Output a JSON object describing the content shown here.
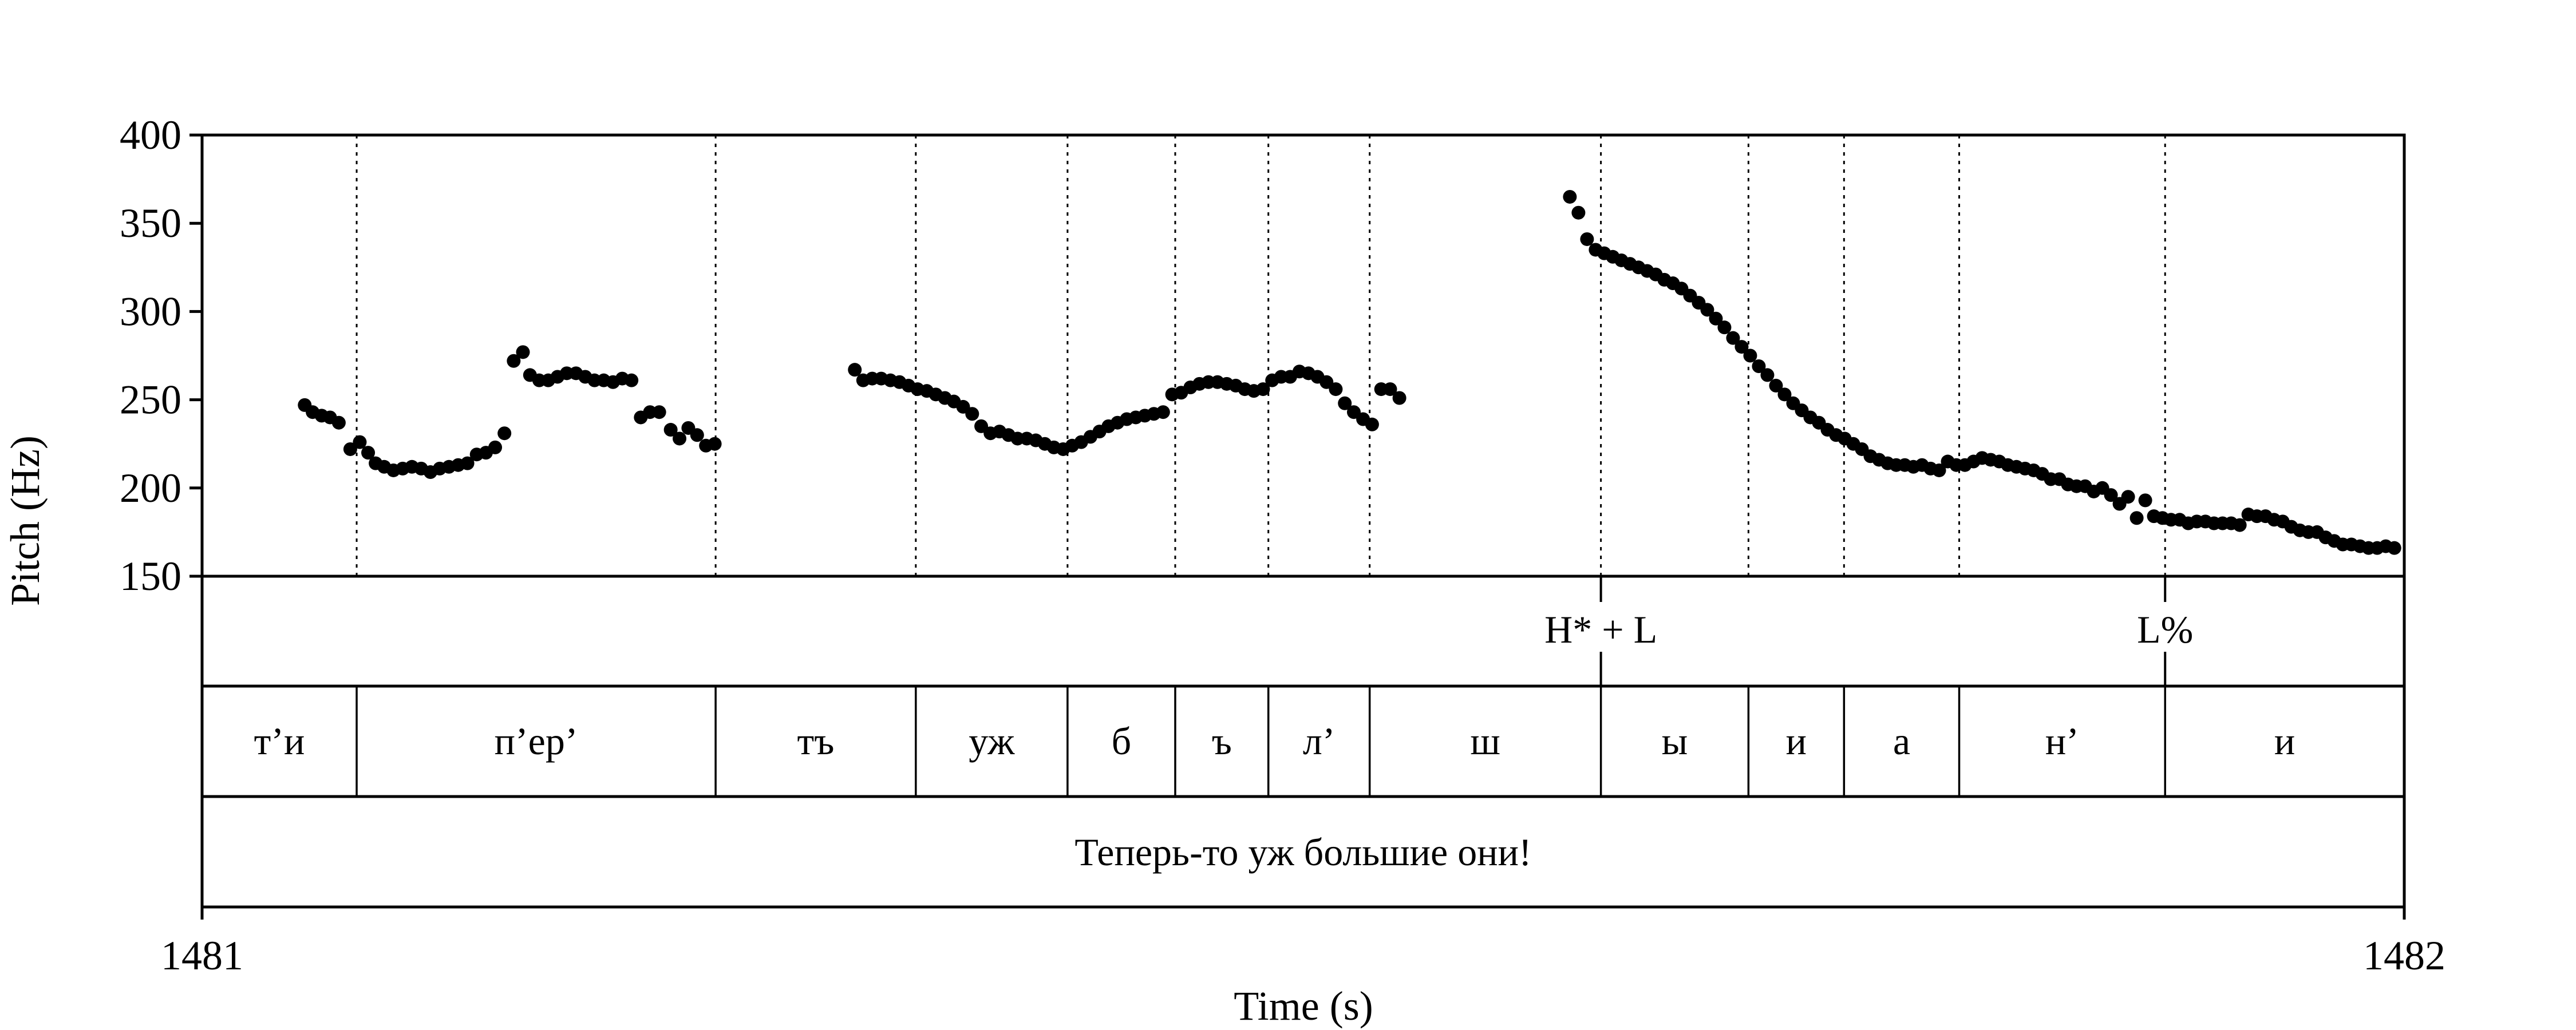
{
  "chart_data": {
    "type": "scatter",
    "xlabel": "Time (s)",
    "ylabel": "Pitch (Hz)",
    "xlim": [
      1481,
      1482
    ],
    "ylim": [
      150,
      400
    ],
    "x_tick_labels": [
      "1481",
      "1482"
    ],
    "y_ticks": [
      150,
      200,
      250,
      300,
      350,
      400
    ],
    "y_tick_labels": [
      "150",
      "200",
      "250",
      "300",
      "350",
      "400"
    ],
    "grid": false,
    "boundaries": [
      1481.0702,
      1481.2332,
      1481.3241,
      1481.393,
      1481.4419,
      1481.4842,
      1481.5302,
      1481.6352,
      1481.7022,
      1481.7456,
      1481.7979,
      1481.8914
    ],
    "tones": [
      {
        "time": 1481.6352,
        "label": "H* + L"
      },
      {
        "time": 1481.8914,
        "label": "L%"
      }
    ],
    "segments": [
      {
        "start": 1481.0,
        "end": 1481.0702,
        "label": "т’и"
      },
      {
        "start": 1481.0702,
        "end": 1481.2332,
        "label": "п’ер’"
      },
      {
        "start": 1481.2332,
        "end": 1481.3241,
        "label": "тъ"
      },
      {
        "start": 1481.3241,
        "end": 1481.393,
        "label": "уж"
      },
      {
        "start": 1481.393,
        "end": 1481.4419,
        "label": "б"
      },
      {
        "start": 1481.4419,
        "end": 1481.4842,
        "label": "ъ"
      },
      {
        "start": 1481.4842,
        "end": 1481.5302,
        "label": "л’"
      },
      {
        "start": 1481.5302,
        "end": 1481.6352,
        "label": "ш"
      },
      {
        "start": 1481.6352,
        "end": 1481.7022,
        "label": "ы"
      },
      {
        "start": 1481.7022,
        "end": 1481.7456,
        "label": "и"
      },
      {
        "start": 1481.7456,
        "end": 1481.7979,
        "label": "а"
      },
      {
        "start": 1481.7979,
        "end": 1481.8914,
        "label": "н’"
      },
      {
        "start": 1481.8914,
        "end": 1482.0,
        "label": "и"
      }
    ],
    "utterance": "Теперь-то уж большие они!",
    "series": [
      {
        "x": [
          1481.0466,
          1481.0502,
          1481.0543,
          1481.0581,
          1481.0621,
          1481.0673,
          1481.0716,
          1481.0754,
          1481.0788,
          1481.0827,
          1481.0869,
          1481.0911,
          1481.0953,
          1481.0995,
          1481.1037,
          1481.1079,
          1481.1121,
          1481.1163,
          1481.1205,
          1481.1247,
          1481.1289,
          1481.1331,
          1481.1373,
          1481.1415,
          1481.1457,
          1481.1489,
          1481.1531,
          1481.1572,
          1481.1614,
          1481.1656,
          1481.1698,
          1481.174,
          1481.1782,
          1481.1824,
          1481.1866,
          1481.1908,
          1481.195,
          1481.1992,
          1481.2034,
          1481.2076,
          1481.2128,
          1481.2168,
          1481.2208,
          1481.2248,
          1481.2288,
          1481.2328
        ],
        "y": [
          247,
          243,
          241,
          240,
          237,
          222,
          226,
          220,
          214,
          212,
          210,
          211,
          212,
          211,
          209,
          211,
          212,
          213,
          214,
          219,
          220,
          223,
          231,
          272,
          277,
          264,
          261,
          261,
          263,
          265,
          265,
          263,
          261,
          261,
          260,
          262,
          261,
          240,
          243,
          243,
          233,
          228,
          234,
          230,
          224,
          225
        ]
      },
      {
        "x": [
          1481.2964,
          1481.3002,
          1481.3043,
          1481.3084,
          1481.3126,
          1481.3167,
          1481.3208,
          1481.3249,
          1481.3291,
          1481.3332,
          1481.3373,
          1481.3414,
          1481.3456,
          1481.3497,
          1481.3538,
          1481.358,
          1481.3621,
          1481.3662,
          1481.3703,
          1481.3745,
          1481.3786,
          1481.3827,
          1481.3868,
          1481.391,
          1481.3951,
          1481.3992,
          1481.4034,
          1481.4075,
          1481.4116,
          1481.4157,
          1481.4199,
          1481.424,
          1481.4281,
          1481.4322,
          1481.4364,
          1481.4405,
          1481.4446,
          1481.4488,
          1481.4529,
          1481.457,
          1481.4611,
          1481.4653,
          1481.4694,
          1481.4735,
          1481.4776,
          1481.4818,
          1481.4859,
          1481.49,
          1481.4941,
          1481.4983,
          1481.5024,
          1481.5065,
          1481.5106,
          1481.5148,
          1481.5189,
          1481.523,
          1481.5272,
          1481.5313,
          1481.5354,
          1481.5395,
          1481.5437
        ],
        "y": [
          267,
          261,
          262,
          262,
          261,
          260,
          258,
          256,
          255,
          253,
          251,
          249,
          246,
          242,
          235,
          231,
          232,
          230,
          228,
          228,
          227,
          225,
          223,
          222,
          224,
          226,
          229,
          232,
          235,
          237,
          239,
          240,
          241,
          242,
          243,
          253,
          254,
          257,
          259,
          260,
          260,
          259,
          258,
          256,
          255,
          256,
          261,
          263,
          263,
          266,
          265,
          263,
          260,
          256,
          248,
          243,
          239,
          236,
          256,
          256,
          251
        ]
      },
      {
        "x": [
          1481.6211,
          1481.625,
          1481.6289,
          1481.6328,
          1481.6367,
          1481.6406,
          1481.6445,
          1481.6484,
          1481.6523,
          1481.6562,
          1481.6601,
          1481.664,
          1481.6679,
          1481.6718,
          1481.6757,
          1481.6796,
          1481.6835,
          1481.6874,
          1481.6913,
          1481.6952,
          1481.6991,
          1481.703,
          1481.7069,
          1481.7108,
          1481.7147,
          1481.7186,
          1481.7225,
          1481.7264,
          1481.7303,
          1481.7342,
          1481.7381,
          1481.742,
          1481.7459,
          1481.7498,
          1481.7537,
          1481.7576,
          1481.7615,
          1481.7654,
          1481.7693,
          1481.7732,
          1481.7771,
          1481.781,
          1481.7849,
          1481.7888,
          1481.7927,
          1481.7966,
          1481.8005,
          1481.8044,
          1481.8083,
          1481.8122,
          1481.8161,
          1481.82,
          1481.8239,
          1481.8278,
          1481.8317,
          1481.8356,
          1481.8395,
          1481.8434,
          1481.8473,
          1481.8512,
          1481.8551,
          1481.859,
          1481.8629,
          1481.8668,
          1481.8707,
          1481.8746,
          1481.8785,
          1481.8824,
          1481.8863,
          1481.8902,
          1481.8941,
          1481.898,
          1481.9019,
          1481.9058,
          1481.9097,
          1481.9136,
          1481.9175,
          1481.9214,
          1481.9253,
          1481.9292,
          1481.9331,
          1481.937,
          1481.9409,
          1481.9448,
          1481.9487,
          1481.9526,
          1481.9565,
          1481.9604,
          1481.9643,
          1481.9682,
          1481.9721,
          1481.976,
          1481.9799,
          1481.9838,
          1481.9877,
          1481.9916,
          1481.9955
        ],
        "y": [
          365,
          356,
          341,
          335,
          333,
          331,
          329,
          327,
          325,
          323,
          321,
          318,
          316,
          313,
          309,
          305,
          301,
          296,
          291,
          285,
          280,
          275,
          269,
          264,
          258,
          253,
          248,
          244,
          240,
          237,
          233,
          230,
          228,
          225,
          222,
          218,
          216,
          214,
          213,
          213,
          212,
          213,
          211,
          210,
          215,
          213,
          213,
          215,
          217,
          216,
          215,
          213,
          212,
          211,
          210,
          208,
          205,
          205,
          202,
          201,
          201,
          198,
          200,
          196,
          191,
          195,
          183,
          193,
          184,
          183,
          182,
          182,
          180,
          181,
          181,
          180,
          180,
          180,
          179,
          185,
          184,
          184,
          182,
          181,
          178,
          176,
          175,
          175,
          172,
          170,
          168,
          168,
          167,
          166,
          166,
          167,
          166
        ]
      }
    ]
  }
}
